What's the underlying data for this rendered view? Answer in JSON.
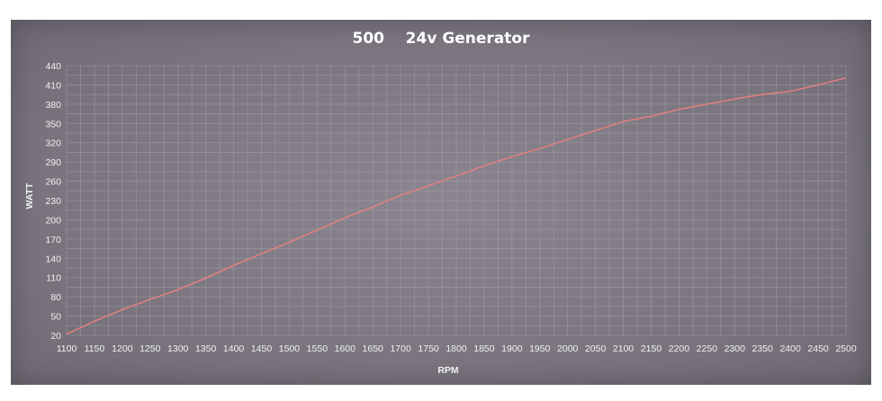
{
  "chart_data": {
    "type": "line",
    "title": "500    24v Generator",
    "xlabel": "RPM",
    "ylabel": "WATT",
    "xlim": [
      1100,
      2500
    ],
    "ylim": [
      20,
      440
    ],
    "x_ticks": [
      1100,
      1150,
      1200,
      1250,
      1300,
      1350,
      1400,
      1450,
      1500,
      1550,
      1600,
      1650,
      1700,
      1750,
      1800,
      1850,
      1900,
      1950,
      2000,
      2050,
      2100,
      2150,
      2200,
      2250,
      2300,
      2350,
      2400,
      2450,
      2500
    ],
    "y_ticks": [
      20,
      50,
      80,
      110,
      140,
      170,
      200,
      230,
      260,
      290,
      320,
      350,
      380,
      410,
      440
    ],
    "grid": true,
    "line_color": "#e07f7f",
    "series": [
      {
        "x": [
          1100,
          1150,
          1200,
          1250,
          1300,
          1350,
          1400,
          1450,
          1500,
          1550,
          1600,
          1650,
          1700,
          1750,
          1800,
          1850,
          1900,
          1950,
          2000,
          2050,
          2100,
          2150,
          2200,
          2250,
          2300,
          2350,
          2400,
          2450,
          2500
        ],
        "values": [
          22,
          42,
          60,
          76,
          91,
          109,
          129,
          147,
          165,
          184,
          203,
          220,
          238,
          253,
          268,
          284,
          298,
          311,
          325,
          339,
          353,
          361,
          372,
          380,
          388,
          395,
          400,
          410,
          421
        ]
      }
    ]
  }
}
